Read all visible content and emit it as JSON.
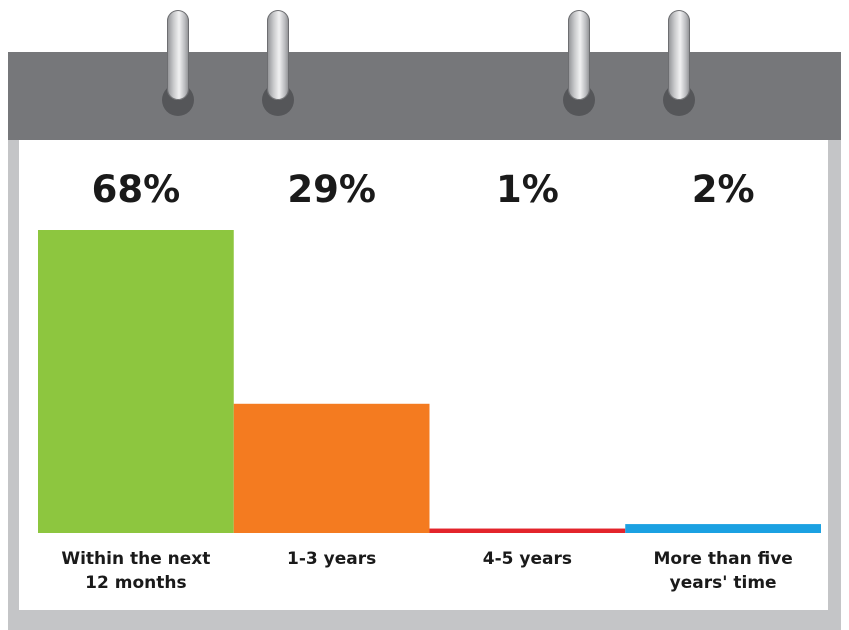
{
  "chart_data": {
    "type": "bar",
    "categories": [
      [
        "Within the next",
        "12 months"
      ],
      [
        "1-3 years"
      ],
      [
        "4-5 years"
      ],
      [
        "More than five",
        "years' time"
      ]
    ],
    "values": [
      68,
      29,
      1,
      2
    ],
    "value_labels": [
      "68%",
      "29%",
      "1%",
      "2%"
    ],
    "colors": [
      "#8dc63f",
      "#f47b20",
      "#e3242b",
      "#1ba1e2"
    ],
    "ylim": [
      0,
      68
    ],
    "grid": false,
    "title": "",
    "xlabel": "",
    "ylabel": ""
  }
}
